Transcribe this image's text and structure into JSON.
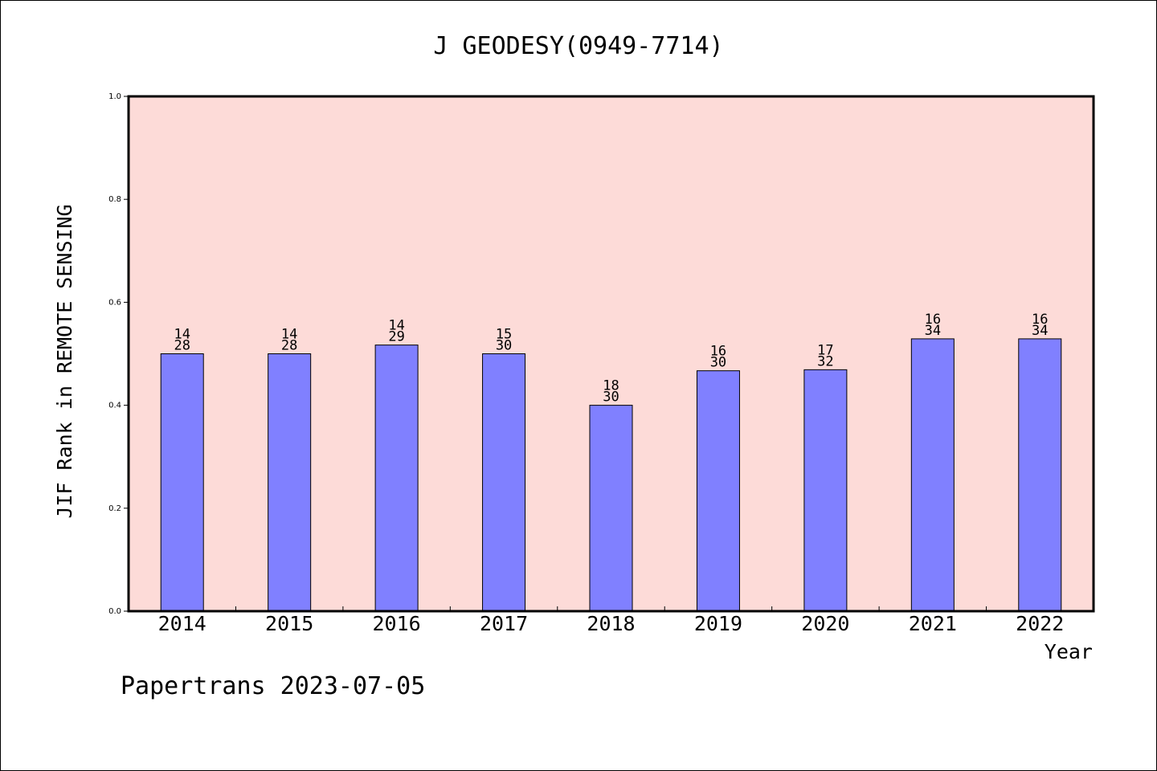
{
  "chart_data": {
    "type": "bar",
    "title": "J GEODESY(0949-7714)",
    "xlabel": "Year",
    "ylabel": "JIF Rank in REMOTE SENSING",
    "categories": [
      "2014",
      "2015",
      "2016",
      "2017",
      "2018",
      "2019",
      "2020",
      "2021",
      "2022"
    ],
    "values": [
      0.5,
      0.5,
      0.517,
      0.5,
      0.4,
      0.467,
      0.469,
      0.529,
      0.529
    ],
    "ranks": [
      "14",
      "14",
      "14",
      "15",
      "18",
      "16",
      "17",
      "16",
      "16"
    ],
    "totals": [
      "28",
      "28",
      "29",
      "30",
      "30",
      "30",
      "32",
      "34",
      "34"
    ],
    "ylim": [
      0,
      1
    ],
    "yticks": [
      "0.0",
      "0.2",
      "0.4",
      "0.6",
      "0.8",
      "1.0"
    ],
    "grid": false,
    "colors": {
      "plot_background": "#fddbd8",
      "bar": "#8080ff",
      "bar_edge": "#000000"
    }
  },
  "footer": "Papertrans 2023-07-05"
}
